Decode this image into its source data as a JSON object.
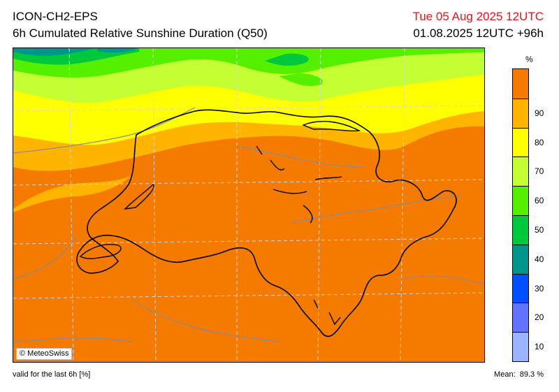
{
  "header": {
    "model": "ICON-CH2-EPS",
    "title": "6h Cumulated Relative Sunshine Duration (Q50)",
    "valid_date": "Tue 05 Aug 2025 12UTC",
    "run_info": "01.08.2025 12UTC +96h"
  },
  "map": {
    "credit": "© MeteoSwiss",
    "background_color": "#f57a00",
    "colors": {
      "border": "#000000",
      "lakes": "#000000",
      "terrain_lines": "#8c8c8c",
      "grid": "#d8d8d8"
    }
  },
  "legend": {
    "unit": "%",
    "levels": [
      {
        "label": "",
        "color": "#f57a00"
      },
      {
        "label": "90",
        "color": "#ffb400"
      },
      {
        "label": "80",
        "color": "#ffff00"
      },
      {
        "label": "70",
        "color": "#c3ff33"
      },
      {
        "label": "60",
        "color": "#55f000"
      },
      {
        "label": "50",
        "color": "#00c83c"
      },
      {
        "label": "40",
        "color": "#00968c"
      },
      {
        "label": "30",
        "color": "#0050ff"
      },
      {
        "label": "20",
        "color": "#6473ff"
      },
      {
        "label": "10",
        "color": "#9bb4ff"
      }
    ]
  },
  "footer": {
    "validity": "valid for the last 6h [%]",
    "mean_label": "Mean:",
    "mean_value": "89.3 %"
  }
}
